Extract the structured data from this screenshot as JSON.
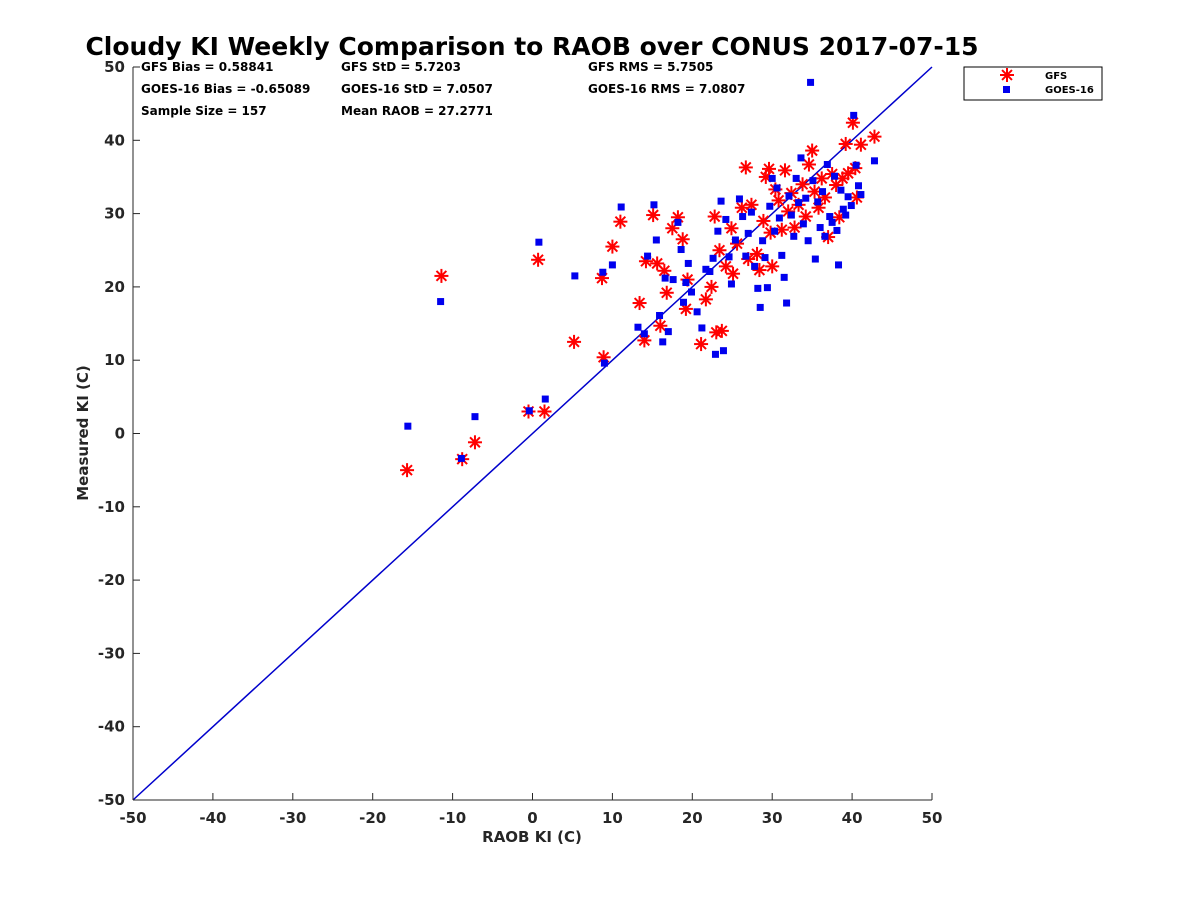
{
  "chart_data": {
    "type": "scatter",
    "title": "Cloudy KI Weekly Comparison to RAOB over CONUS 2017-07-15",
    "xlabel": "RAOB KI (C)",
    "ylabel": "Measured KI (C)",
    "xlim": [
      -50,
      50
    ],
    "ylim": [
      -50,
      50
    ],
    "x_ticks": [
      "-50",
      "-40",
      "-30",
      "-20",
      "-10",
      "0",
      "10",
      "20",
      "30",
      "40",
      "50"
    ],
    "y_ticks": [
      "-50",
      "-40",
      "-30",
      "-20",
      "-10",
      "0",
      "10",
      "20",
      "30",
      "40",
      "50"
    ],
    "grid": false,
    "legend_position": "top-right, outside plot area",
    "reference_line": {
      "type": "one-to-one",
      "from": [
        -50,
        -50
      ],
      "to": [
        50,
        50
      ],
      "color": "#0000cc"
    },
    "stats": [
      [
        "GFS Bias = 0.58841",
        "GFS StD = 5.7203",
        "GFS RMS = 5.7505"
      ],
      [
        "GOES-16 Bias = -0.65089",
        "GOES-16 StD = 7.0507",
        "GOES-16 RMS = 7.0807"
      ],
      [
        "Sample Size = 157",
        "Mean RAOB = 27.2771",
        ""
      ]
    ],
    "series": [
      {
        "name": "GFS",
        "marker": "asterisk",
        "color": "#ff0000",
        "points": [
          [
            -15.7,
            -5.0
          ],
          [
            -11.4,
            21.5
          ],
          [
            -8.8,
            -3.5
          ],
          [
            -7.2,
            -1.2
          ],
          [
            -0.5,
            3.0
          ],
          [
            0.7,
            23.7
          ],
          [
            1.5,
            3.0
          ],
          [
            5.2,
            12.5
          ],
          [
            8.7,
            21.2
          ],
          [
            8.9,
            10.4
          ],
          [
            10.0,
            25.5
          ],
          [
            11.0,
            28.9
          ],
          [
            13.4,
            17.8
          ],
          [
            14.0,
            12.7
          ],
          [
            14.2,
            23.5
          ],
          [
            15.1,
            29.8
          ],
          [
            15.6,
            23.2
          ],
          [
            16.0,
            14.7
          ],
          [
            16.5,
            22.2
          ],
          [
            16.8,
            19.2
          ],
          [
            17.5,
            28.0
          ],
          [
            18.2,
            29.5
          ],
          [
            18.8,
            26.5
          ],
          [
            19.2,
            17.0
          ],
          [
            19.4,
            21.0
          ],
          [
            21.1,
            12.2
          ],
          [
            21.7,
            18.3
          ],
          [
            22.4,
            20.0
          ],
          [
            22.8,
            29.6
          ],
          [
            23.0,
            13.8
          ],
          [
            23.4,
            25.0
          ],
          [
            23.7,
            14.0
          ],
          [
            24.2,
            22.8
          ],
          [
            24.9,
            28.0
          ],
          [
            25.1,
            21.8
          ],
          [
            25.6,
            25.9
          ],
          [
            26.2,
            30.8
          ],
          [
            26.7,
            36.3
          ],
          [
            27.0,
            23.8
          ],
          [
            27.4,
            31.2
          ],
          [
            28.1,
            24.5
          ],
          [
            28.4,
            22.3
          ],
          [
            28.9,
            29.0
          ],
          [
            29.2,
            35.0
          ],
          [
            29.6,
            36.1
          ],
          [
            29.8,
            27.4
          ],
          [
            30.0,
            22.8
          ],
          [
            30.4,
            33.3
          ],
          [
            30.8,
            31.8
          ],
          [
            31.2,
            27.8
          ],
          [
            31.6,
            35.9
          ],
          [
            32.0,
            30.3
          ],
          [
            32.4,
            32.8
          ],
          [
            32.8,
            28.1
          ],
          [
            33.3,
            31.2
          ],
          [
            33.8,
            34.0
          ],
          [
            34.2,
            29.6
          ],
          [
            34.6,
            36.7
          ],
          [
            35.0,
            38.6
          ],
          [
            35.3,
            33.0
          ],
          [
            35.8,
            30.8
          ],
          [
            36.2,
            34.8
          ],
          [
            36.6,
            32.2
          ],
          [
            37.0,
            26.8
          ],
          [
            37.5,
            35.4
          ],
          [
            38.0,
            33.9
          ],
          [
            38.4,
            29.5
          ],
          [
            38.8,
            34.8
          ],
          [
            39.2,
            39.5
          ],
          [
            39.5,
            35.5
          ],
          [
            40.1,
            42.4
          ],
          [
            40.4,
            36.2
          ],
          [
            40.6,
            32.2
          ],
          [
            41.1,
            39.4
          ],
          [
            42.8,
            40.5
          ]
        ]
      },
      {
        "name": "GOES-16",
        "marker": "square",
        "color": "#0000ee",
        "points": [
          [
            -15.6,
            1.0
          ],
          [
            -11.5,
            18.0
          ],
          [
            -8.9,
            -3.4
          ],
          [
            -7.2,
            2.3
          ],
          [
            -0.4,
            3.1
          ],
          [
            0.8,
            26.1
          ],
          [
            1.6,
            4.7
          ],
          [
            5.3,
            21.5
          ],
          [
            8.8,
            22.0
          ],
          [
            9.0,
            9.6
          ],
          [
            10.0,
            23.0
          ],
          [
            11.1,
            30.9
          ],
          [
            13.2,
            14.5
          ],
          [
            14.0,
            13.6
          ],
          [
            14.4,
            24.2
          ],
          [
            15.2,
            31.2
          ],
          [
            15.5,
            26.4
          ],
          [
            15.9,
            16.1
          ],
          [
            16.3,
            12.5
          ],
          [
            16.6,
            21.2
          ],
          [
            17.0,
            13.9
          ],
          [
            17.6,
            21.0
          ],
          [
            18.2,
            28.8
          ],
          [
            18.6,
            25.1
          ],
          [
            18.9,
            17.9
          ],
          [
            19.2,
            20.6
          ],
          [
            19.5,
            23.2
          ],
          [
            19.9,
            19.3
          ],
          [
            20.6,
            16.6
          ],
          [
            21.2,
            14.4
          ],
          [
            21.7,
            22.4
          ],
          [
            22.2,
            22.1
          ],
          [
            22.6,
            23.9
          ],
          [
            22.9,
            10.8
          ],
          [
            23.2,
            27.6
          ],
          [
            23.6,
            31.7
          ],
          [
            23.9,
            11.3
          ],
          [
            24.2,
            29.2
          ],
          [
            24.6,
            24.1
          ],
          [
            24.9,
            20.4
          ],
          [
            25.4,
            26.4
          ],
          [
            25.9,
            32.0
          ],
          [
            26.3,
            29.6
          ],
          [
            26.7,
            24.2
          ],
          [
            27.0,
            27.3
          ],
          [
            27.4,
            30.2
          ],
          [
            27.8,
            22.8
          ],
          [
            28.2,
            19.8
          ],
          [
            28.5,
            17.2
          ],
          [
            28.8,
            26.3
          ],
          [
            29.1,
            24.0
          ],
          [
            29.4,
            19.9
          ],
          [
            29.7,
            31.0
          ],
          [
            30.0,
            34.8
          ],
          [
            30.3,
            27.6
          ],
          [
            30.6,
            33.5
          ],
          [
            30.9,
            29.4
          ],
          [
            31.2,
            24.3
          ],
          [
            31.5,
            21.3
          ],
          [
            31.8,
            17.8
          ],
          [
            32.1,
            32.4
          ],
          [
            32.4,
            29.8
          ],
          [
            32.7,
            26.9
          ],
          [
            33.0,
            34.8
          ],
          [
            33.3,
            31.5
          ],
          [
            33.6,
            37.6
          ],
          [
            33.9,
            28.6
          ],
          [
            34.2,
            32.1
          ],
          [
            34.5,
            26.3
          ],
          [
            34.8,
            47.9
          ],
          [
            35.1,
            34.5
          ],
          [
            35.4,
            23.8
          ],
          [
            35.7,
            31.6
          ],
          [
            36.0,
            28.1
          ],
          [
            36.3,
            33.0
          ],
          [
            36.6,
            26.9
          ],
          [
            36.9,
            36.7
          ],
          [
            37.2,
            29.6
          ],
          [
            37.5,
            28.8
          ],
          [
            37.8,
            35.1
          ],
          [
            38.1,
            27.7
          ],
          [
            38.3,
            23.0
          ],
          [
            38.6,
            33.2
          ],
          [
            38.9,
            30.6
          ],
          [
            39.2,
            29.8
          ],
          [
            39.5,
            32.3
          ],
          [
            39.9,
            31.1
          ],
          [
            40.2,
            43.4
          ],
          [
            40.5,
            36.6
          ],
          [
            40.8,
            33.8
          ],
          [
            41.1,
            32.6
          ],
          [
            42.8,
            37.2
          ]
        ]
      }
    ]
  }
}
